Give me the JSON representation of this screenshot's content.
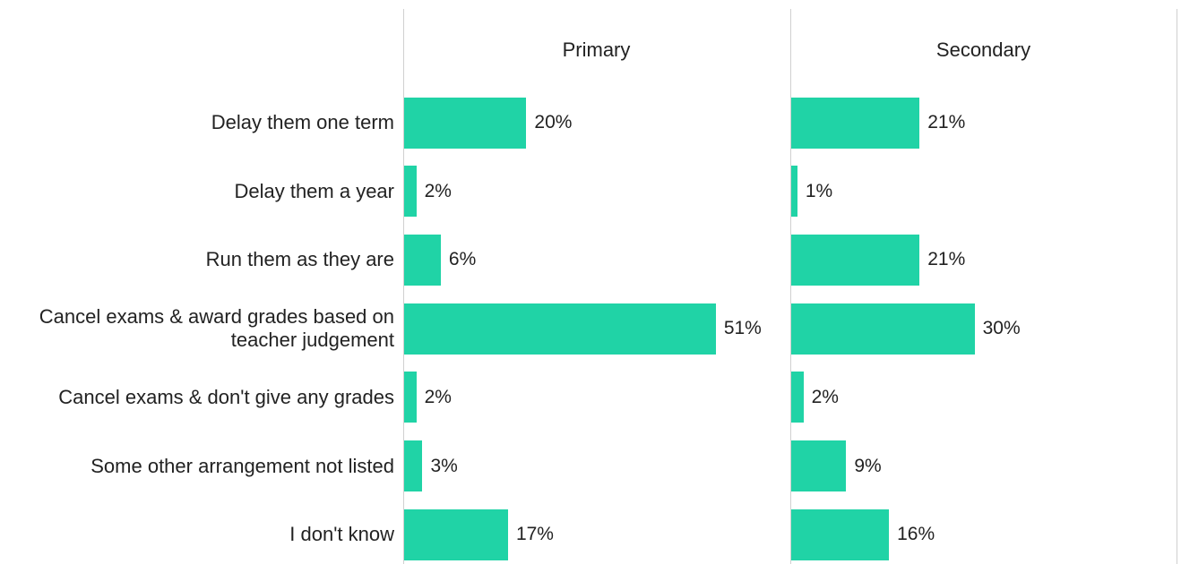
{
  "chart_data": {
    "type": "bar",
    "orientation": "horizontal",
    "color": "#20d3a6",
    "categories": [
      "Delay them one term",
      "Delay them a year",
      "Run them as they are",
      "Cancel exams & award grades based on teacher judgement",
      "Cancel exams & don't give any grades",
      "Some other arrangement not listed",
      "I don't know"
    ],
    "series": [
      {
        "name": "Primary",
        "values": [
          20,
          2,
          6,
          51,
          2,
          3,
          17
        ],
        "value_labels": [
          "20%",
          "2%",
          "6%",
          "51%",
          "2%",
          "3%",
          "17%"
        ]
      },
      {
        "name": "Secondary",
        "values": [
          21,
          1,
          21,
          30,
          2,
          9,
          16
        ],
        "value_labels": [
          "21%",
          "1%",
          "21%",
          "30%",
          "2%",
          "9%",
          "16%"
        ]
      }
    ]
  }
}
